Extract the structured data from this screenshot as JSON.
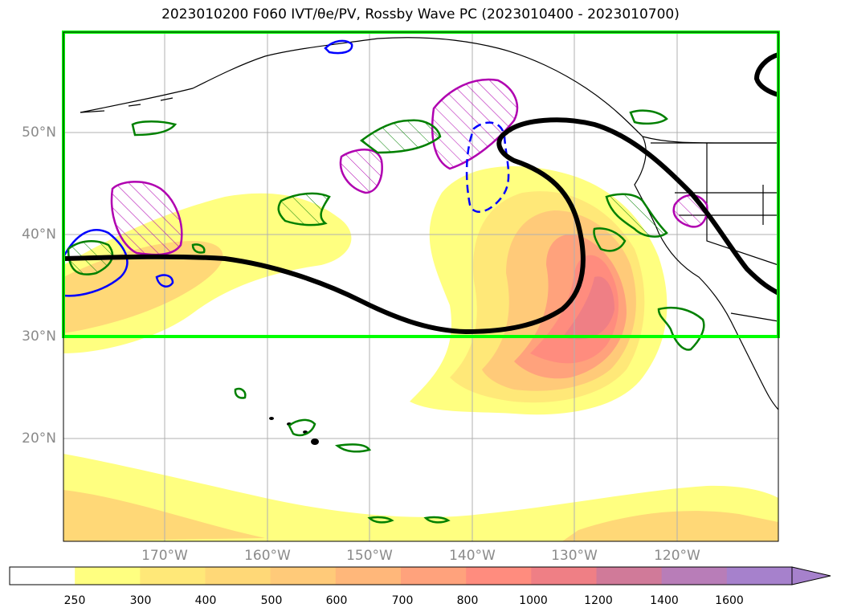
{
  "title": "2023010200 F060 IVT/θe/PV, Rossby Wave PC (2023010400 - 2023010700)",
  "lat_labels": [
    "50°N",
    "40°N",
    "30°N",
    "20°N"
  ],
  "lon_labels": [
    "170°W",
    "160°W",
    "150°W",
    "140°W",
    "130°W",
    "120°W"
  ],
  "colorbar": {
    "ticks": [
      "250",
      "300",
      "400",
      "500",
      "600",
      "700",
      "800",
      "1000",
      "1200",
      "1400",
      "1600"
    ],
    "colors": [
      "#ffffff",
      "#ffff80",
      "#ffe878",
      "#ffd877",
      "#ffca79",
      "#ffb77a",
      "#ffa27c",
      "#ff8c7e",
      "#ef7f85",
      "#d07a99",
      "#b87db8",
      "#a681cc"
    ]
  },
  "colors": {
    "analysis_box": "#00ff00",
    "rossby_wave": "#000000",
    "pv_contour": "#008000",
    "theta_e_neg": "#0000ff",
    "theta_e_pos": "#b000b0"
  }
}
